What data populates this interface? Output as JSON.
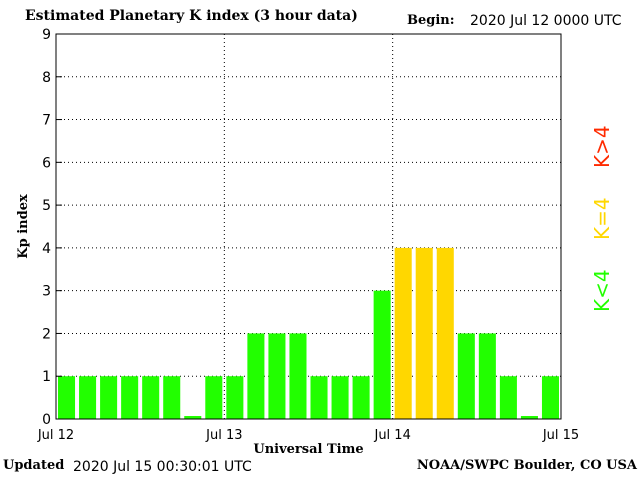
{
  "header": {
    "title": "Estimated Planetary K index (3 hour data)",
    "begin_label": "Begin:",
    "begin_value": "2020 Jul 12 0000 UTC"
  },
  "footer": {
    "updated_label": "Updated",
    "updated_value": "2020 Jul 15 00:30:01 UTC",
    "credit": "NOAA/SWPC Boulder, CO USA"
  },
  "legend": {
    "low": "K<4",
    "equal": "K=4",
    "high": "K>4"
  },
  "colors": {
    "low": "#22ff00",
    "equal": "#ffd700",
    "high": "#ff2a00",
    "grid": "#000000"
  },
  "chart_data": {
    "type": "bar",
    "xlabel": "Universal Time",
    "ylabel": "Kp index",
    "ylim": [
      0,
      9
    ],
    "yticks": [
      "0",
      "1",
      "2",
      "3",
      "4",
      "5",
      "6",
      "7",
      "8",
      "9"
    ],
    "xticks": [
      "Jul 12",
      "Jul 13",
      "Jul 14",
      "Jul 15"
    ],
    "grid": true,
    "series": [
      {
        "values": [
          1,
          1,
          1,
          1,
          1,
          1,
          0,
          1,
          1,
          2,
          2,
          2,
          1,
          1,
          1,
          3,
          4,
          4,
          4,
          2,
          2,
          1,
          0,
          1
        ]
      }
    ]
  }
}
